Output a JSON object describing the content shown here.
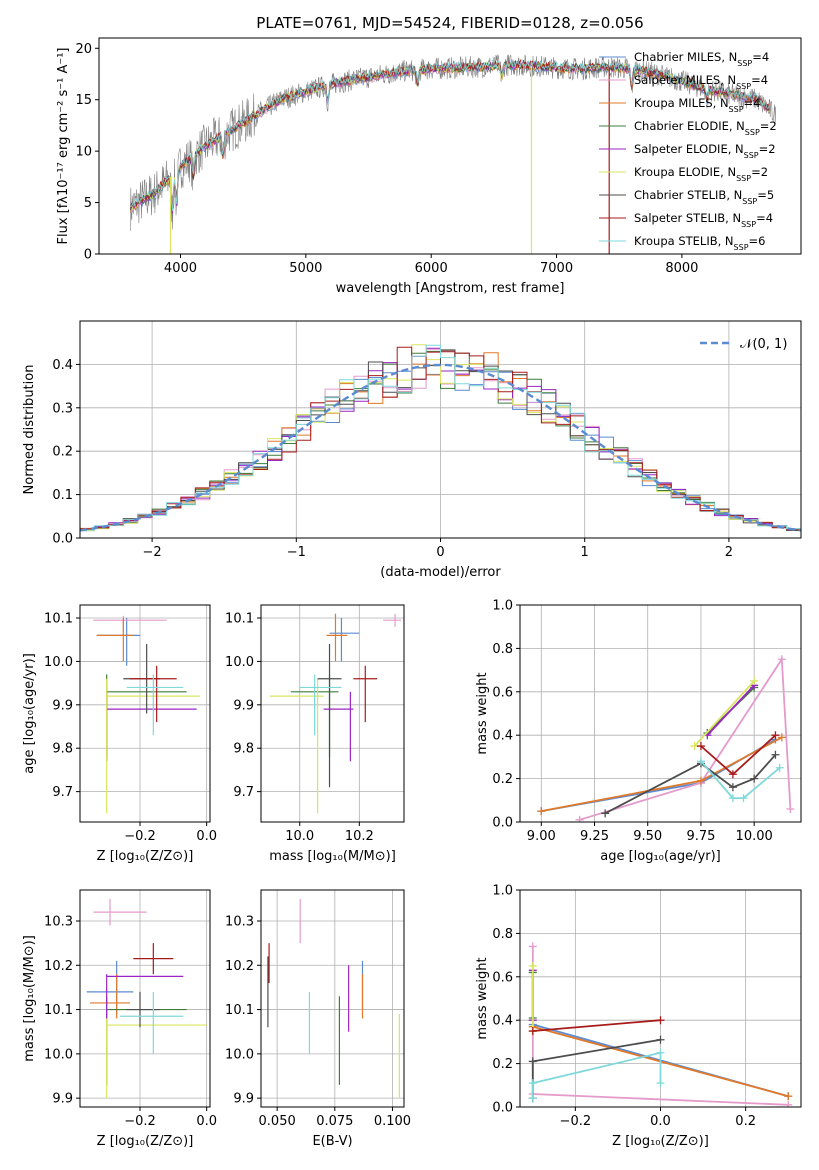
{
  "figure_title": "PLATE=0761, MJD=54524, FIBERID=0128, z=0.056",
  "colors": {
    "Chabrier MILES": "#5b8bd1",
    "Salpeter MILES": "#e49acb",
    "Kroupa MILES": "#e0792a",
    "Chabrier ELODIE": "#3d7d3d",
    "Salpeter ELODIE": "#9b25c4",
    "Kroupa ELODIE": "#d9e560",
    "Chabrier STELIB": "#4d4d4d",
    "Salpeter STELIB": "#a81b1b",
    "Kroupa STELIB": "#7fd8da",
    "data": "#808080",
    "normal": "#5b8bd1"
  },
  "chart_data": [
    {
      "id": "spectrum",
      "type": "line",
      "title": "PLATE=0761, MJD=54524, FIBERID=0128, z=0.056",
      "xlabel": "wavelength [Angstrom, rest frame]",
      "ylabel": "Flux [fλ10⁻¹⁷ erg cm⁻² s⁻¹ A⁻¹]",
      "xlim": [
        3350,
        8950
      ],
      "ylim": [
        0,
        21
      ],
      "xticks": [
        "4000",
        "5000",
        "6000",
        "7000",
        "8000"
      ],
      "yticks": [
        "0",
        "5",
        "10",
        "15",
        "20"
      ],
      "grid": false,
      "legend_placement": "right",
      "legend": [
        {
          "series": "Chabrier MILES",
          "pre": "Chabrier MILES, N",
          "post": "=4"
        },
        {
          "series": "Salpeter MILES",
          "pre": "Salpeter MILES, N",
          "post": "=4"
        },
        {
          "series": "Kroupa MILES",
          "pre": "Kroupa MILES, N",
          "post": "=4"
        },
        {
          "series": "Chabrier ELODIE",
          "pre": "Chabrier ELODIE, N",
          "post": "=2"
        },
        {
          "series": "Salpeter ELODIE",
          "pre": "Salpeter ELODIE, N",
          "post": "=2"
        },
        {
          "series": "Kroupa ELODIE",
          "pre": "Kroupa ELODIE, N",
          "post": "=2"
        },
        {
          "series": "Chabrier STELIB",
          "pre": "Chabrier STELIB, N",
          "post": "=5"
        },
        {
          "series": "Salpeter STELIB",
          "pre": "Salpeter STELIB, N",
          "post": "=4"
        },
        {
          "series": "Kroupa STELIB",
          "pre": "Kroupa STELIB, N",
          "post": "=6"
        }
      ],
      "legend_subscript": "SSP",
      "continuum": {
        "x": [
          3600,
          3800,
          4000,
          4200,
          4400,
          4600,
          4800,
          5000,
          5200,
          5400,
          5600,
          5800,
          6000,
          6200,
          6400,
          6600,
          6800,
          7000,
          7200,
          7400,
          7600,
          7800,
          8000,
          8200,
          8400,
          8600,
          8750
        ],
        "y": [
          4.5,
          6.0,
          8.5,
          10.5,
          12.0,
          13.5,
          15.0,
          15.8,
          16.5,
          17.0,
          17.4,
          17.8,
          18.0,
          18.1,
          18.2,
          18.4,
          18.3,
          18.1,
          18.0,
          18.2,
          18.0,
          17.5,
          16.8,
          16.0,
          15.5,
          15.0,
          13.5
        ]
      },
      "model_range": [
        3600,
        8700
      ],
      "data_range": [
        3600,
        8750
      ],
      "spikes": [
        {
          "series": "Kroupa ELODIE",
          "x": 3920
        },
        {
          "series": "Kroupa ELODIE",
          "x": 6800
        },
        {
          "series": "Salpeter STELIB",
          "x": 7420
        }
      ]
    },
    {
      "id": "residuals",
      "type": "line",
      "xlabel": "(data-model)/error",
      "ylabel": "Normed distribution",
      "xlim": [
        -2.5,
        2.5
      ],
      "ylim": [
        0,
        0.5
      ],
      "xticks": [
        "−2",
        "−1",
        "0",
        "1",
        "2"
      ],
      "yticks": [
        "0.0",
        "0.1",
        "0.2",
        "0.3",
        "0.4"
      ],
      "grid": true,
      "legend_placement": "top-right",
      "legend_label": "𝒩(0, 1)",
      "normal": {
        "mean": 0,
        "sigma": 1
      },
      "bin_width": 0.1
    },
    {
      "id": "age_vs_Z",
      "type": "scatter",
      "xlabel": "Z [log₁₀(Z/Z⊙)]",
      "ylabel": "age  [log₁₀(age/yr)]",
      "xlim": [
        -0.38,
        0.01
      ],
      "ylim": [
        9.63,
        10.13
      ],
      "xticks": [
        "−0.2",
        "0.0"
      ],
      "yticks": [
        "9.7",
        "9.8",
        "9.9",
        "10.0",
        "10.1"
      ],
      "grid": true,
      "points": [
        {
          "series": "Chabrier MILES",
          "x": -0.24,
          "y": 10.06,
          "xlo": -0.33,
          "xhi": -0.2,
          "ylo": 9.99,
          "yhi": 10.1
        },
        {
          "series": "Salpeter MILES",
          "x": -0.25,
          "y": 10.095,
          "xlo": -0.34,
          "xhi": -0.12,
          "ylo": 10.07,
          "yhi": 10.105
        },
        {
          "series": "Kroupa MILES",
          "x": -0.25,
          "y": 10.06,
          "xlo": -0.33,
          "xhi": -0.22,
          "ylo": 10.0,
          "yhi": 10.1
        },
        {
          "series": "Chabrier ELODIE",
          "x": -0.3,
          "y": 9.93,
          "xlo": -0.3,
          "xhi": -0.06,
          "ylo": 9.78,
          "yhi": 9.97
        },
        {
          "series": "Salpeter ELODIE",
          "x": -0.3,
          "y": 9.89,
          "xlo": -0.3,
          "xhi": -0.03,
          "ylo": 9.77,
          "yhi": 9.93
        },
        {
          "series": "Kroupa ELODIE",
          "x": -0.3,
          "y": 9.92,
          "xlo": -0.3,
          "xhi": -0.02,
          "ylo": 9.65,
          "yhi": 9.96
        },
        {
          "series": "Chabrier STELIB",
          "x": -0.18,
          "y": 9.96,
          "xlo": -0.25,
          "xhi": -0.14,
          "ylo": 9.88,
          "yhi": 10.04
        },
        {
          "series": "Salpeter STELIB",
          "x": -0.15,
          "y": 9.96,
          "xlo": -0.23,
          "xhi": -0.09,
          "ylo": 9.86,
          "yhi": 9.99
        },
        {
          "series": "Kroupa STELIB",
          "x": -0.16,
          "y": 9.94,
          "xlo": -0.24,
          "xhi": -0.07,
          "ylo": 9.83,
          "yhi": 9.97
        }
      ]
    },
    {
      "id": "age_vs_mass",
      "type": "scatter",
      "xlabel": "mass [log₁₀(M/M⊙)]",
      "ylabel": "",
      "xlim": [
        9.87,
        10.35
      ],
      "ylim": [
        9.63,
        10.13
      ],
      "xticks": [
        "10.0",
        "10.2"
      ],
      "yticks": [
        "9.7",
        "9.8",
        "9.9",
        "10.0",
        "10.1"
      ],
      "grid": true,
      "points": [
        {
          "series": "Chabrier MILES",
          "x": 10.14,
          "y": 10.065,
          "xlo": 10.1,
          "xhi": 10.2,
          "ylo": 10.0,
          "yhi": 10.1
        },
        {
          "series": "Salpeter MILES",
          "x": 10.32,
          "y": 10.095,
          "xlo": 10.28,
          "xhi": 10.34,
          "ylo": 10.08,
          "yhi": 10.11
        },
        {
          "series": "Kroupa MILES",
          "x": 10.12,
          "y": 10.06,
          "xlo": 10.09,
          "xhi": 10.16,
          "ylo": 10.0,
          "yhi": 10.11
        },
        {
          "series": "Chabrier ELODIE",
          "x": 10.1,
          "y": 9.93,
          "xlo": 9.97,
          "xhi": 10.13,
          "ylo": 9.78,
          "yhi": 9.97
        },
        {
          "series": "Salpeter ELODIE",
          "x": 10.17,
          "y": 9.89,
          "xlo": 10.08,
          "xhi": 10.18,
          "ylo": 9.77,
          "yhi": 9.93
        },
        {
          "series": "Kroupa ELODIE",
          "x": 10.06,
          "y": 9.92,
          "xlo": 9.9,
          "xhi": 10.08,
          "ylo": 9.65,
          "yhi": 9.96
        },
        {
          "series": "Chabrier STELIB",
          "x": 10.1,
          "y": 9.96,
          "xlo": 10.06,
          "xhi": 10.14,
          "ylo": 9.71,
          "yhi": 10.04
        },
        {
          "series": "Salpeter STELIB",
          "x": 10.22,
          "y": 9.96,
          "xlo": 10.18,
          "xhi": 10.26,
          "ylo": 9.86,
          "yhi": 9.99
        },
        {
          "series": "Kroupa STELIB",
          "x": 10.05,
          "y": 9.94,
          "xlo": 10.0,
          "xhi": 10.14,
          "ylo": 9.83,
          "yhi": 9.97
        }
      ]
    },
    {
      "id": "mass_weight_vs_age",
      "type": "line",
      "xlabel": "age  [log₁₀(age/yr)]",
      "ylabel": "mass weight",
      "xlim": [
        8.9,
        10.22
      ],
      "ylim": [
        0,
        1
      ],
      "xticks": [
        "9.00",
        "9.25",
        "9.50",
        "9.75",
        "10.00"
      ],
      "yticks": [
        "0.0",
        "0.2",
        "0.4",
        "0.6",
        "0.8",
        "1.0"
      ],
      "grid": true,
      "series": [
        {
          "name": "Chabrier MILES",
          "x": [
            9.0,
            9.75,
            10.1
          ],
          "y": [
            0.05,
            0.18,
            0.38
          ]
        },
        {
          "name": "Salpeter MILES",
          "x": [
            9.18,
            9.75,
            10.13,
            10.17
          ],
          "y": [
            0.01,
            0.18,
            0.75,
            0.06
          ]
        },
        {
          "name": "Kroupa MILES",
          "x": [
            9.0,
            9.75,
            10.13
          ],
          "y": [
            0.05,
            0.19,
            0.39
          ]
        },
        {
          "name": "Chabrier ELODIE",
          "x": [
            9.78,
            10.0
          ],
          "y": [
            0.41,
            0.62
          ]
        },
        {
          "name": "Salpeter ELODIE",
          "x": [
            9.78,
            10.0
          ],
          "y": [
            0.4,
            0.63
          ]
        },
        {
          "name": "Kroupa ELODIE",
          "x": [
            9.72,
            10.0
          ],
          "y": [
            0.35,
            0.65
          ]
        },
        {
          "name": "Chabrier STELIB",
          "x": [
            9.3,
            9.75,
            9.9,
            10.0,
            10.1
          ],
          "y": [
            0.04,
            0.27,
            0.16,
            0.2,
            0.31
          ]
        },
        {
          "name": "Salpeter STELIB",
          "x": [
            9.75,
            9.9,
            10.1
          ],
          "y": [
            0.35,
            0.22,
            0.4
          ]
        },
        {
          "name": "Kroupa STELIB",
          "x": [
            9.75,
            9.9,
            9.95,
            10.12
          ],
          "y": [
            0.28,
            0.11,
            0.11,
            0.25
          ]
        }
      ]
    },
    {
      "id": "mass_vs_Z",
      "type": "scatter",
      "xlabel": "Z [log₁₀(Z/Z⊙)]",
      "ylabel": "mass [log₁₀(M/M⊙)]",
      "xlim": [
        -0.38,
        0.01
      ],
      "ylim": [
        9.88,
        10.37
      ],
      "xticks": [
        "−0.2",
        "0.0"
      ],
      "yticks": [
        "9.9",
        "10.0",
        "10.1",
        "10.2",
        "10.3"
      ],
      "grid": true,
      "points": [
        {
          "series": "Chabrier MILES",
          "x": -0.27,
          "y": 10.14,
          "xlo": -0.36,
          "xhi": -0.22,
          "ylo": 10.09,
          "yhi": 10.21
        },
        {
          "series": "Salpeter MILES",
          "x": -0.29,
          "y": 10.32,
          "xlo": -0.34,
          "xhi": -0.18,
          "ylo": 10.29,
          "yhi": 10.35
        },
        {
          "series": "Kroupa MILES",
          "x": -0.27,
          "y": 10.115,
          "xlo": -0.35,
          "xhi": -0.23,
          "ylo": 10.08,
          "yhi": 10.18
        },
        {
          "series": "Chabrier ELODIE",
          "x": -0.3,
          "y": 10.1,
          "xlo": -0.3,
          "xhi": -0.06,
          "ylo": 9.93,
          "yhi": 10.13
        },
        {
          "series": "Salpeter ELODIE",
          "x": -0.3,
          "y": 10.175,
          "xlo": -0.3,
          "xhi": -0.07,
          "ylo": 10.08,
          "yhi": 10.18
        },
        {
          "series": "Kroupa ELODIE",
          "x": -0.3,
          "y": 10.065,
          "xlo": -0.3,
          "xhi": 0.0,
          "ylo": 9.9,
          "yhi": 10.08
        },
        {
          "series": "Chabrier STELIB",
          "x": -0.2,
          "y": 10.1,
          "xlo": -0.24,
          "xhi": -0.14,
          "ylo": 10.06,
          "yhi": 10.14
        },
        {
          "series": "Salpeter STELIB",
          "x": -0.16,
          "y": 10.215,
          "xlo": -0.22,
          "xhi": -0.1,
          "ylo": 10.18,
          "yhi": 10.25
        },
        {
          "series": "Kroupa STELIB",
          "x": -0.16,
          "y": 10.085,
          "xlo": -0.26,
          "xhi": -0.07,
          "ylo": 10.0,
          "yhi": 10.14
        }
      ]
    },
    {
      "id": "mass_vs_EBV",
      "type": "scatter",
      "xlabel": "E(B-V)",
      "ylabel": "",
      "xlim": [
        0.043,
        0.105
      ],
      "ylim": [
        9.88,
        10.37
      ],
      "xticks": [
        "0.050",
        "0.075",
        "0.100"
      ],
      "yticks": [
        "9.9",
        "10.0",
        "10.1",
        "10.2",
        "10.3"
      ],
      "grid": true,
      "points": [
        {
          "series": "Chabrier MILES",
          "x": 0.087,
          "ylo": 10.1,
          "yhi": 10.21
        },
        {
          "series": "Salpeter MILES",
          "x": 0.06,
          "ylo": 10.25,
          "yhi": 10.35
        },
        {
          "series": "Kroupa MILES",
          "x": 0.087,
          "ylo": 10.08,
          "yhi": 10.18
        },
        {
          "series": "Chabrier ELODIE",
          "x": 0.077,
          "ylo": 9.93,
          "yhi": 10.13
        },
        {
          "series": "Salpeter ELODIE",
          "x": 0.081,
          "ylo": 10.05,
          "yhi": 10.2
        },
        {
          "series": "Kroupa ELODIE",
          "x": 0.103,
          "ylo": 9.9,
          "yhi": 10.09
        },
        {
          "series": "Chabrier STELIB",
          "x": 0.046,
          "ylo": 10.06,
          "yhi": 10.22
        },
        {
          "series": "Salpeter STELIB",
          "x": 0.0465,
          "ylo": 10.16,
          "yhi": 10.25
        },
        {
          "series": "Kroupa STELIB",
          "x": 0.064,
          "ylo": 10.0,
          "yhi": 10.14
        }
      ]
    },
    {
      "id": "mass_weight_vs_Z",
      "type": "line",
      "xlabel": "Z [log₁₀(Z/Z⊙)]",
      "ylabel": "mass weight",
      "xlim": [
        -0.33,
        0.33
      ],
      "ylim": [
        0,
        1
      ],
      "xticks": [
        "−0.2",
        "0.0",
        "0.2"
      ],
      "yticks": [
        "0.0",
        "0.2",
        "0.4",
        "0.6",
        "0.8",
        "1.0"
      ],
      "grid": true,
      "series": [
        {
          "name": "Chabrier MILES",
          "x": [
            -0.3,
            0.3
          ],
          "y": [
            0.38,
            0.05
          ]
        },
        {
          "name": "Salpeter MILES",
          "x": [
            -0.3,
            -0.3,
            0.3
          ],
          "y": [
            0.74,
            0.06,
            0.01
          ]
        },
        {
          "name": "Kroupa MILES",
          "x": [
            -0.3,
            0.3
          ],
          "y": [
            0.37,
            0.05
          ]
        },
        {
          "name": "Chabrier ELODIE",
          "x": [
            -0.3,
            -0.3
          ],
          "y": [
            0.41,
            0.62
          ]
        },
        {
          "name": "Salpeter ELODIE",
          "x": [
            -0.3,
            -0.3
          ],
          "y": [
            0.4,
            0.63
          ]
        },
        {
          "name": "Kroupa ELODIE",
          "x": [
            -0.3,
            -0.3
          ],
          "y": [
            0.35,
            0.65
          ]
        },
        {
          "name": "Chabrier STELIB",
          "x": [
            -0.3,
            -0.3,
            0.0
          ],
          "y": [
            0.04,
            0.21,
            0.31
          ]
        },
        {
          "name": "Salpeter STELIB",
          "x": [
            -0.3,
            0.0
          ],
          "y": [
            0.35,
            0.4
          ]
        },
        {
          "name": "Kroupa STELIB",
          "x": [
            -0.3,
            -0.3,
            0.0,
            0.0
          ],
          "y": [
            0.04,
            0.11,
            0.25,
            0.11
          ]
        }
      ]
    }
  ]
}
